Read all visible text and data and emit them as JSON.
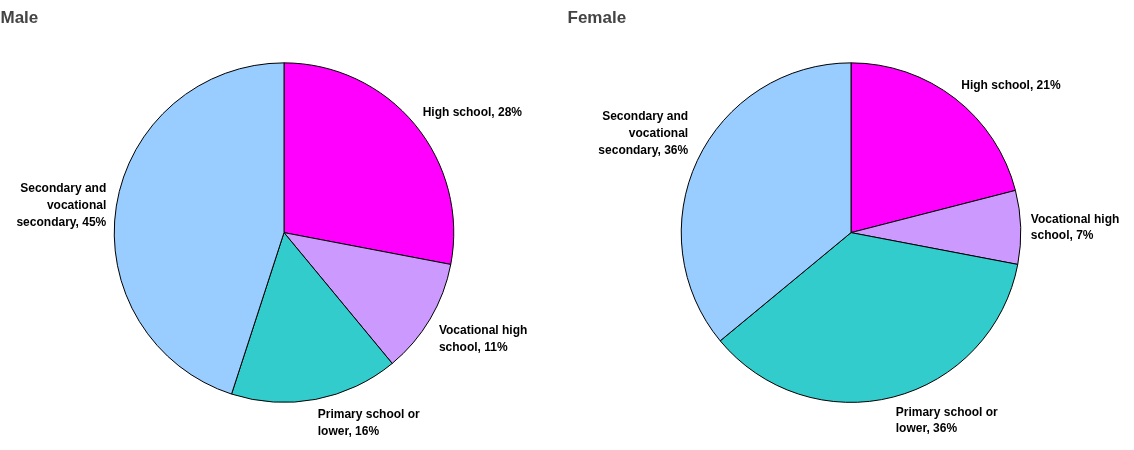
{
  "chart_data": [
    {
      "type": "pie",
      "title": "Male",
      "categories": [
        "High school",
        "Vocational high school",
        "Primary school or lower",
        "Secondary and vocational secondary"
      ],
      "values": [
        28,
        11,
        16,
        45
      ],
      "colors": [
        "#ff00ff",
        "#cc99ff",
        "#33cccc",
        "#99ccff"
      ],
      "value_labels": [
        "28%",
        "11%",
        "16%",
        "45%"
      ]
    },
    {
      "type": "pie",
      "title": "Female",
      "categories": [
        "High school",
        "Vocational high school",
        "Primary school or lower",
        "Secondary and vocational secondary"
      ],
      "values": [
        21,
        7,
        36,
        36
      ],
      "colors": [
        "#ff00ff",
        "#cc99ff",
        "#33cccc",
        "#99ccff"
      ],
      "value_labels": [
        "21%",
        "7%",
        "36%",
        "36%"
      ]
    }
  ]
}
